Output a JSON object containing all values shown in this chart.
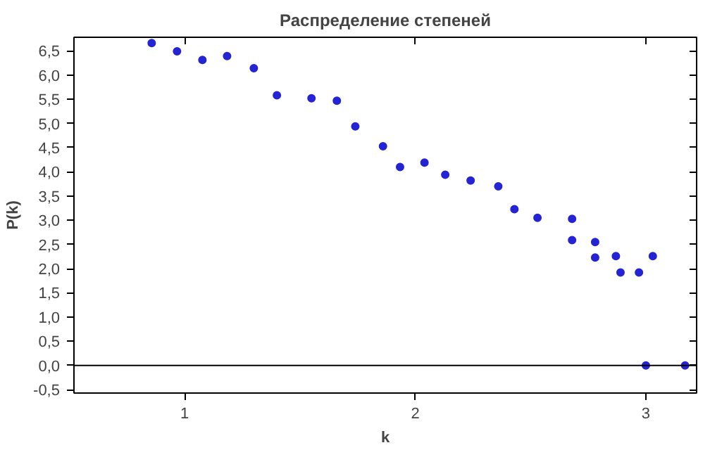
{
  "chart_data": {
    "type": "scatter",
    "title": "Распределение степеней",
    "xlabel": "k",
    "ylabel": "P(k)",
    "x": [
      0.857,
      0.967,
      1.077,
      1.184,
      1.3,
      1.4,
      1.55,
      1.66,
      1.74,
      1.86,
      1.934,
      2.04,
      2.13,
      2.24,
      2.36,
      2.43,
      2.53,
      2.68,
      2.68,
      2.78,
      2.78,
      2.87,
      2.89,
      2.97,
      3.03,
      3.0,
      3.17
    ],
    "series": [
      {
        "color": "#2424d4",
        "values": [
          6.66,
          6.49,
          6.31,
          6.39,
          6.14,
          5.58,
          5.52,
          5.47,
          4.94,
          4.53,
          4.1,
          4.19,
          3.94,
          3.82,
          3.7,
          3.23,
          3.05,
          3.03,
          2.59,
          2.55,
          2.23,
          2.26,
          1.92,
          1.92,
          2.26,
          0,
          0
        ]
      }
    ],
    "xlim": [
      0.52,
      3.22
    ],
    "ylim": [
      -0.57,
      6.78
    ],
    "xticks": [
      1,
      2,
      3
    ],
    "yticks": [
      {
        "value": -0.5,
        "label": "-0,5"
      },
      {
        "value": 0,
        "label": "0,0"
      },
      {
        "value": 0.5,
        "label": "0,5"
      },
      {
        "value": 1,
        "label": "1,0"
      },
      {
        "value": 1.5,
        "label": "1,5"
      },
      {
        "value": 2,
        "label": "2,0"
      },
      {
        "value": 2.5,
        "label": "2,5"
      },
      {
        "value": 3,
        "label": "3,0"
      },
      {
        "value": 3.5,
        "label": "3,5"
      },
      {
        "value": 4,
        "label": "4,0"
      },
      {
        "value": 4.5,
        "label": "4,5"
      },
      {
        "value": 5,
        "label": "5,0"
      },
      {
        "value": 5.5,
        "label": "5,5"
      },
      {
        "value": 6,
        "label": "6,0"
      },
      {
        "value": 6.5,
        "label": "6,5"
      }
    ],
    "ref_lines": [
      {
        "axis": "y",
        "value": 0,
        "color": "#000000"
      }
    ],
    "marker": "circle"
  }
}
